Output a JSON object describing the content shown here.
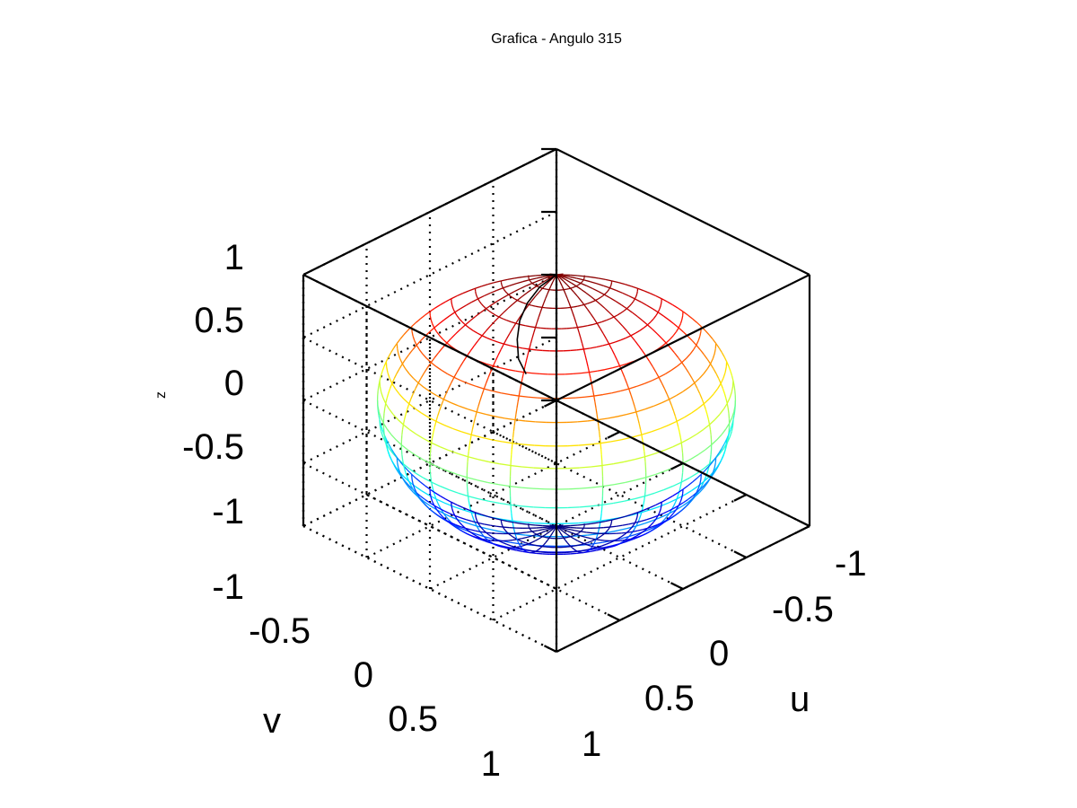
{
  "chart_data": {
    "type": "surface",
    "title": "Grafica - Angulo  315",
    "xlabel": "u",
    "ylabel": "v",
    "zlabel": "z",
    "xlim": [
      -1,
      1
    ],
    "ylim": [
      -1,
      1
    ],
    "zlim": [
      -1,
      1
    ],
    "x_ticks": [
      "-1",
      "-0.5",
      "0",
      "0.5",
      "1"
    ],
    "y_ticks": [
      "-1",
      "-0.5",
      "0",
      "0.5",
      "1"
    ],
    "z_ticks": [
      "-1",
      "-0.5",
      "0",
      "0.5",
      "1"
    ],
    "view_azimuth_deg": 315,
    "grid": true,
    "box": true,
    "colormap": "jet",
    "surface": {
      "shape": "unit sphere (mesh)",
      "radius": 1,
      "center": [
        0,
        0,
        0
      ],
      "meridians": 24,
      "parallels": 20
    },
    "curve": {
      "description": "path on sphere surface from the north pole",
      "points": [
        [
          0.0,
          0.0,
          1.0
        ],
        [
          0.15,
          0.02,
          0.99
        ],
        [
          0.29,
          0.06,
          0.95
        ],
        [
          0.41,
          0.12,
          0.9
        ],
        [
          0.51,
          0.2,
          0.84
        ],
        [
          0.58,
          0.28,
          0.76
        ],
        [
          0.61,
          0.37,
          0.7
        ]
      ]
    }
  }
}
